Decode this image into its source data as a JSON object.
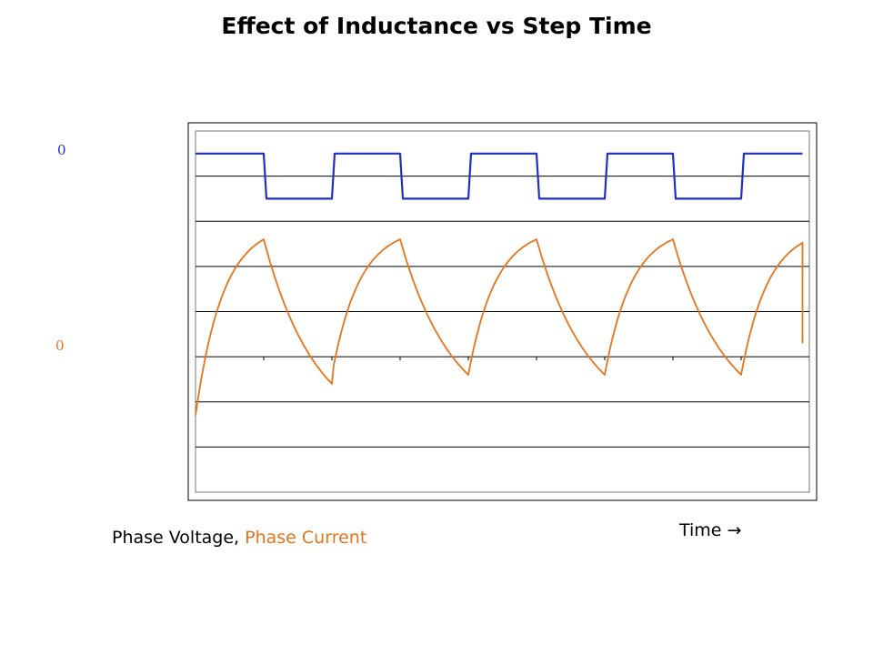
{
  "chart_data": {
    "type": "line",
    "title": "Effect of Inductance vs Step Time",
    "xlabel": "Time",
    "x_arrow": "→",
    "x_range": [
      0,
      4.5
    ],
    "y_range": [
      -1,
      7
    ],
    "grid": true,
    "legend": {
      "placement": "bottom-left",
      "separator": ", ",
      "entries": [
        "Phase Voltage",
        "Phase Current"
      ]
    },
    "y_zero_labels": [
      {
        "series": "Phase Voltage",
        "text": "0"
      },
      {
        "series": "Phase Current",
        "text": "0"
      }
    ],
    "series": [
      {
        "name": "Phase Voltage",
        "color": "#1f2fbf",
        "kind": "square_wave",
        "high": 6.5,
        "low": 5.5,
        "period": 1,
        "duty": 0.5,
        "edge_time": 0.02,
        "x_end": 4.45
      },
      {
        "name": "Phase Current",
        "color": "#e8731a",
        "kind": "rl_charge_discharge",
        "i_start": 0.7,
        "i_peak": 4.6,
        "i_trough": 1.6,
        "i_first_min": 1.4,
        "rise_shape": 2.5,
        "fall_shape": 1.3,
        "period": 1,
        "duty": 0.5,
        "x_end": 4.45,
        "x_end_value": 2.3
      }
    ]
  },
  "colors": {
    "background": "#ffffff",
    "plot_border": "#000000",
    "gridline": "#000000",
    "voltage_label": "#1f2fbf",
    "current_label": "#e8731a"
  }
}
